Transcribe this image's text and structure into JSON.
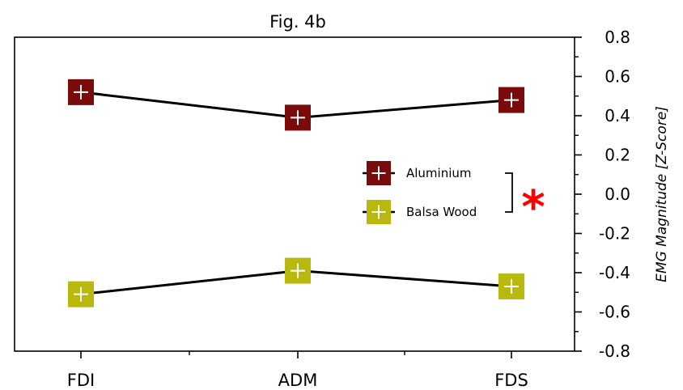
{
  "chart_data": {
    "type": "line",
    "title": "Fig. 4b",
    "xlabel": "",
    "ylabel": "EMG Magnitude [Z-Score]",
    "categories": [
      "FDI",
      "ADM",
      "FDS"
    ],
    "ylim": [
      -0.8,
      0.8
    ],
    "yticks": [
      0.8,
      0.6,
      0.4,
      0.2,
      0.0,
      -0.2,
      -0.4,
      -0.6,
      -0.8
    ],
    "ytick_labels": [
      "0.8",
      "0.6",
      "0.4",
      "0.2",
      "0.0",
      "-0.2",
      "-0.4",
      "-0.6",
      "-0.8"
    ],
    "grid": false,
    "y_axis_side": "right",
    "legend_position": "center-right",
    "series": [
      {
        "name": "Aluminium",
        "values": [
          0.52,
          0.39,
          0.48
        ],
        "color": "#7a0b0b"
      },
      {
        "name": "Balsa Wood",
        "values": [
          -0.51,
          -0.39,
          -0.47
        ],
        "color": "#b8b80f"
      }
    ],
    "annotation": {
      "symbol": "*",
      "color": "#ff0000",
      "meaning": "significant difference between series"
    }
  }
}
